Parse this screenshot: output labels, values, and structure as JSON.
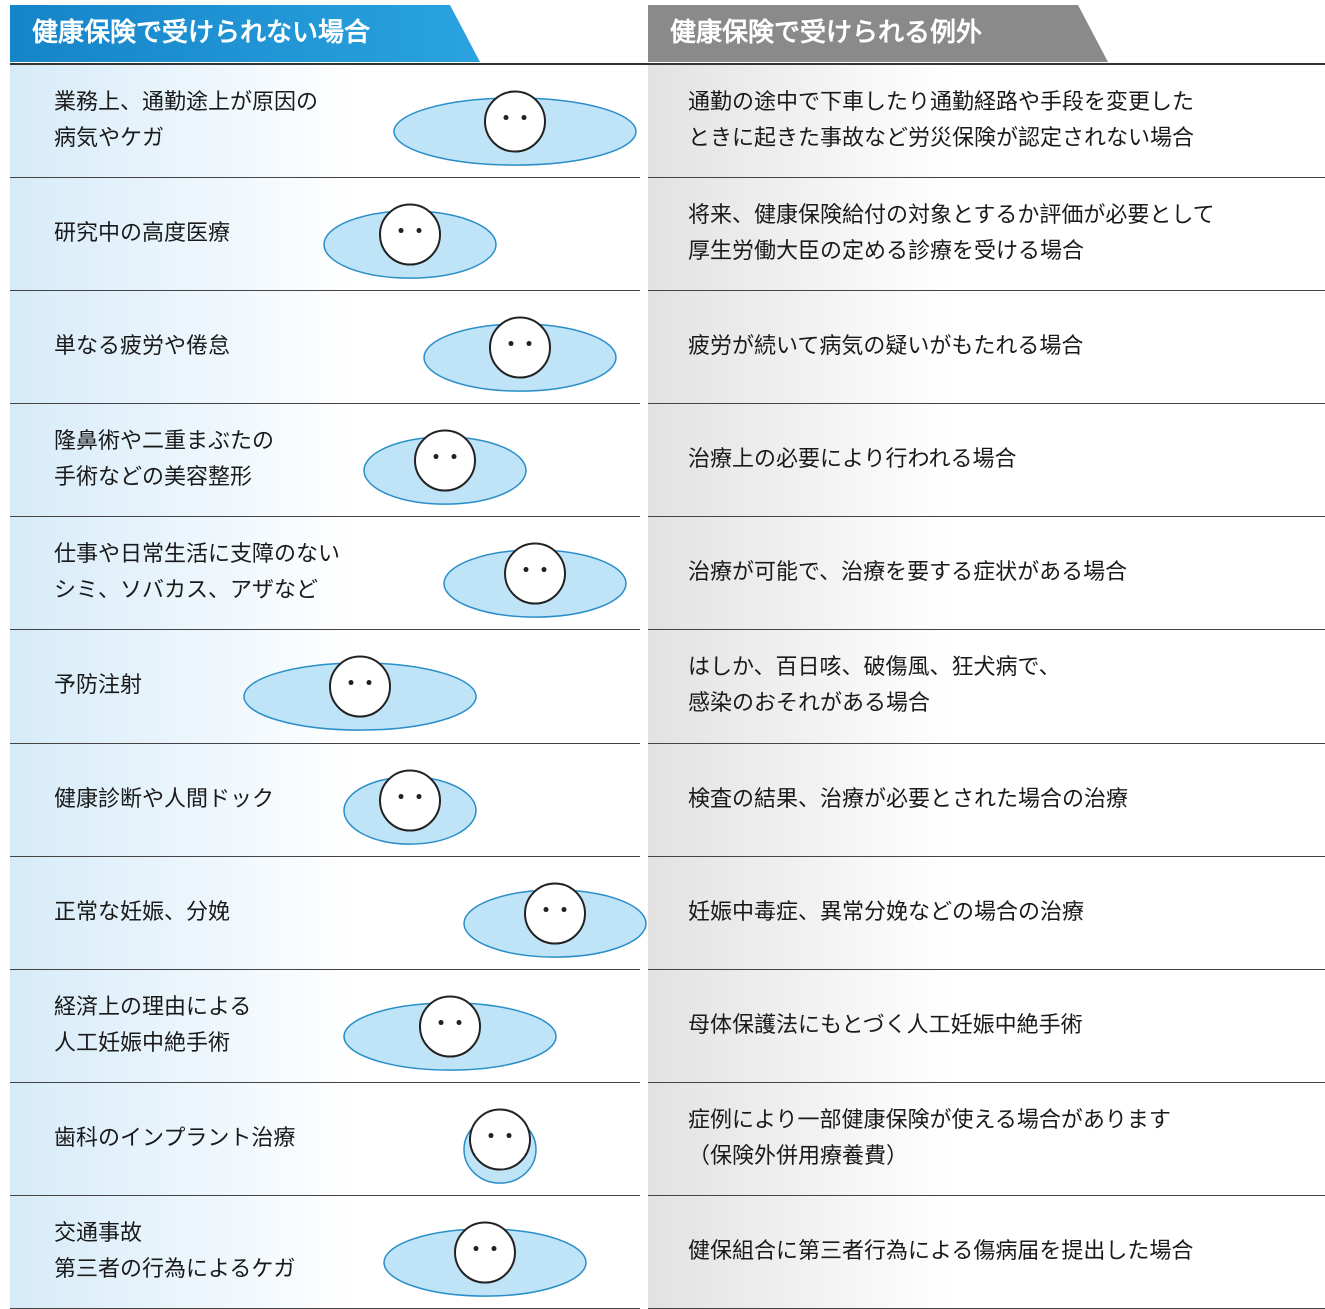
{
  "header": {
    "left_title": "健康保険で受けられない場合",
    "right_title": "健康保険で受けられる例外"
  },
  "table": {
    "rows": [
      {
        "excluded": [
          "業務上、通勤途上が原因の",
          "病気やケガ"
        ],
        "exception": [
          "通勤の途中で下車したり通勤経路や手段を変更した",
          "ときに起きた事故など労災保険が認定されない場合"
        ]
      },
      {
        "excluded": [
          "研究中の高度医療"
        ],
        "exception": [
          "将来、健康保険給付の対象とするか評価が必要として",
          "厚生労働大臣の定める診療を受ける場合"
        ]
      },
      {
        "excluded": [
          "単なる疲労や倦怠"
        ],
        "exception": [
          "疲労が続いて病気の疑いがもたれる場合"
        ]
      },
      {
        "excluded": [
          "隆鼻術や二重まぶたの",
          "手術などの美容整形"
        ],
        "exception": [
          "治療上の必要により行われる場合"
        ]
      },
      {
        "excluded": [
          "仕事や日常生活に支障のない",
          "シミ、ソバカス、アザなど"
        ],
        "exception": [
          "治療が可能で、治療を要する症状がある場合"
        ]
      },
      {
        "excluded": [
          "予防注射"
        ],
        "exception": [
          "はしか、百日咳、破傷風、狂犬病で、",
          "感染のおそれがある場合"
        ]
      },
      {
        "excluded": [
          "健康診断や人間ドック"
        ],
        "exception": [
          "検査の結果、治療が必要とされた場合の治療"
        ]
      },
      {
        "excluded": [
          "正常な妊娠、分娩"
        ],
        "exception": [
          "妊娠中毒症、異常分娩などの場合の治療"
        ]
      },
      {
        "excluded": [
          "経済上の理由による",
          "人工妊娠中絶手術"
        ],
        "exception": [
          "母体保護法にもとづく人工妊娠中絶手術"
        ]
      },
      {
        "excluded": [
          "歯科のインプラント治療"
        ],
        "exception": [
          "症例により一部健康保険が使える場合があります",
          "（保険外併用療養費）"
        ]
      },
      {
        "excluded": [
          "交通事故",
          "第三者の行為によるケガ"
        ],
        "exception": [
          "健保組合に第三者行為による傷病届を提出した場合"
        ]
      }
    ]
  }
}
